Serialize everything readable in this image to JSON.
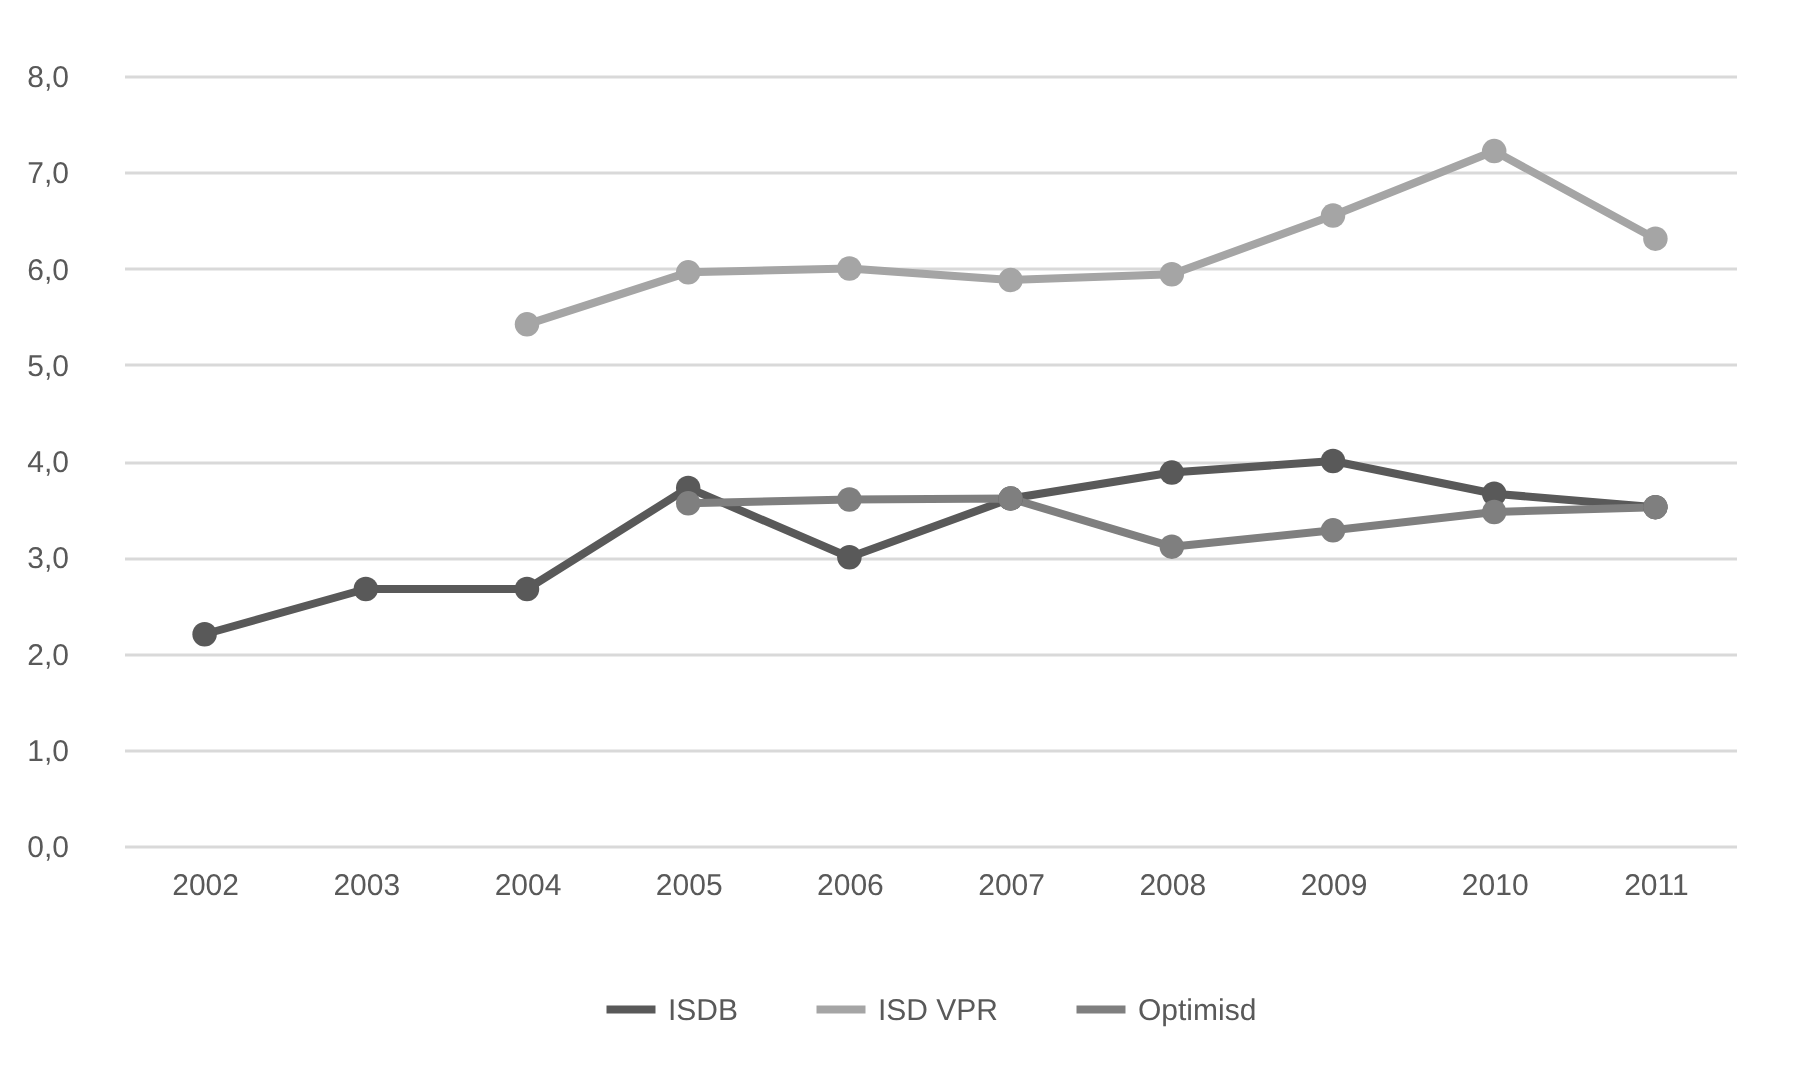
{
  "chart_data": {
    "type": "line",
    "categories": [
      "2002",
      "2003",
      "2004",
      "2005",
      "2006",
      "2007",
      "2008",
      "2009",
      "2010",
      "2011"
    ],
    "series": [
      {
        "name": "ISDB",
        "color": "#595959",
        "values": [
          2.2,
          2.67,
          2.67,
          3.72,
          3.0,
          3.61,
          3.88,
          4.0,
          3.66,
          3.52
        ]
      },
      {
        "name": "ISD VPR",
        "color": "#a5a5a5",
        "values": [
          null,
          null,
          5.42,
          5.96,
          6.0,
          5.88,
          5.94,
          6.55,
          7.22,
          6.31
        ]
      },
      {
        "name": "Optimisd",
        "color": "#7f7f7f",
        "values": [
          null,
          null,
          null,
          3.56,
          3.6,
          3.61,
          3.11,
          3.28,
          3.47,
          3.52
        ]
      }
    ],
    "ylim": [
      0,
      8
    ],
    "yticks": [
      {
        "value": 0,
        "label": "0,0"
      },
      {
        "value": 1,
        "label": "1,0"
      },
      {
        "value": 2,
        "label": "2,0"
      },
      {
        "value": 3,
        "label": "3,0"
      },
      {
        "value": 4,
        "label": "4,0"
      },
      {
        "value": 5,
        "label": "5,0"
      },
      {
        "value": 6,
        "label": "6,0"
      },
      {
        "value": 7,
        "label": "7,0"
      },
      {
        "value": 8,
        "label": "8,0"
      }
    ],
    "grid": "y",
    "legend": "bottom",
    "marker": "circle",
    "line_style": "solid"
  }
}
